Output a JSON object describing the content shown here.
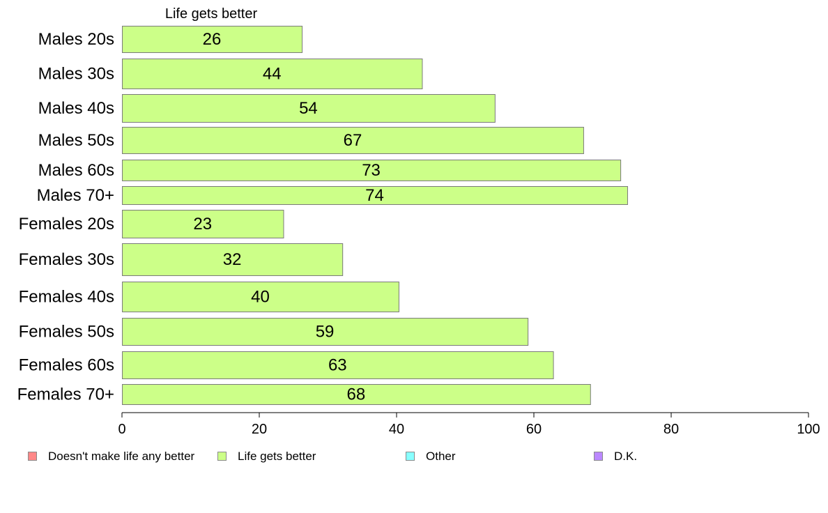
{
  "chart_data": {
    "type": "bar",
    "orientation": "horizontal",
    "title": "Life gets better",
    "categories": [
      "Males 20s",
      "Males 30s",
      "Males 40s",
      "Males 50s",
      "Males 60s",
      "Males 70+",
      "Females 20s",
      "Females 30s",
      "Females 40s",
      "Females 50s",
      "Females 60s",
      "Females 70+"
    ],
    "series": [
      {
        "name": "Life gets better",
        "color": "#ccff88",
        "values": [
          26.2,
          43.7,
          54.3,
          67.2,
          72.6,
          73.6,
          23.5,
          32.1,
          40.3,
          59.1,
          62.8,
          68.2
        ],
        "labels": [
          "26",
          "44",
          "54",
          "67",
          "73",
          "74",
          "23",
          "32",
          "40",
          "59",
          "63",
          "68"
        ]
      }
    ],
    "xlim": [
      0,
      100
    ],
    "xticks": [
      0,
      20,
      40,
      60,
      80,
      100
    ],
    "grid": false,
    "legend_position": "bottom",
    "legend": [
      {
        "label": "Doesn't make life any better",
        "color": "#ff8888"
      },
      {
        "label": "Life gets better",
        "color": "#ccff88"
      },
      {
        "label": "Other",
        "color": "#88ffff"
      },
      {
        "label": "D.K.",
        "color": "#bb88ff"
      }
    ]
  }
}
